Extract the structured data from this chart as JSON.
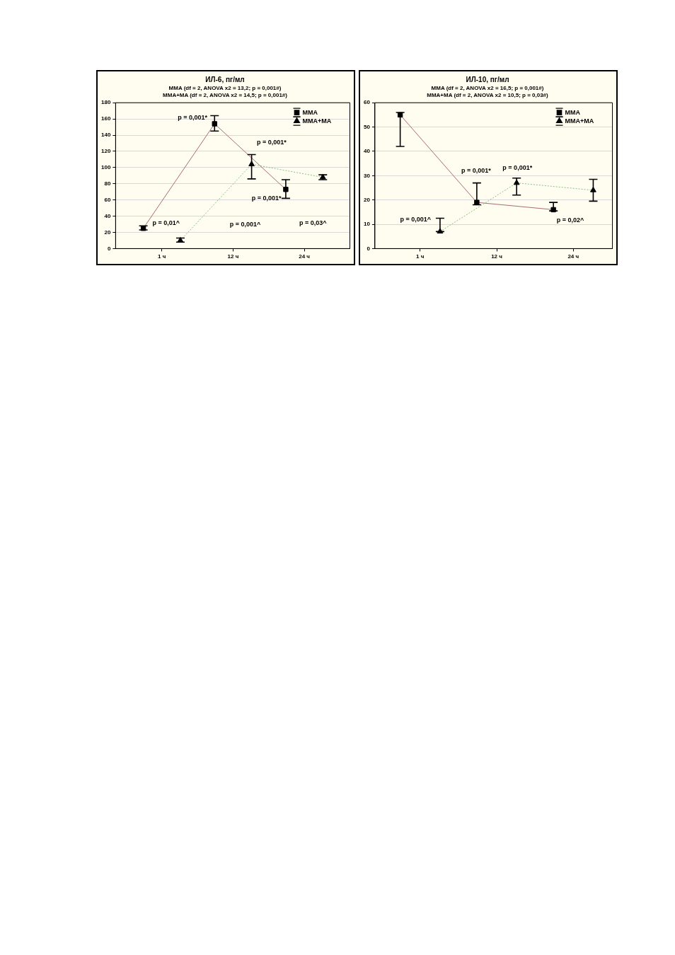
{
  "chart_data": [
    {
      "type": "line",
      "title": "ИЛ-6, пг/мл",
      "subtitle": "MMA (df = 2, ANOVA x2 = 13,2; p = 0,001#)\nMMA+MA (df = 2, ANOVA x2 = 14,5; p = 0,001#)",
      "categories": [
        "1 ч",
        "12 ч",
        "24 ч"
      ],
      "series": [
        {
          "name": "MMA",
          "color": "#a86a78",
          "values": [
            25,
            154,
            73
          ],
          "errors": [
            [
              23,
              28
            ],
            [
              145,
              164
            ],
            [
              62,
              85
            ]
          ],
          "marker": "square",
          "line_style": "solid"
        },
        {
          "name": "MMA+MA",
          "color": "#88c088",
          "values": [
            10,
            104,
            88
          ],
          "errors": [
            [
              8,
              13
            ],
            [
              86,
              116
            ],
            [
              85,
              91
            ]
          ],
          "marker": "triangle",
          "line_style": "dotted"
        }
      ],
      "ylim": [
        0,
        180
      ],
      "yticks": [
        0,
        20,
        40,
        60,
        80,
        100,
        120,
        140,
        160,
        180
      ],
      "grid": "y",
      "legend": "top right",
      "annotations": [
        "p = 0,001*",
        "p = 0,001*",
        "p = 0,001*",
        "p = 0,01^",
        "p = 0,001^",
        "p = 0,03^"
      ]
    },
    {
      "type": "line",
      "title": "ИЛ-10, пг/мл",
      "subtitle": "MMA (df = 2, ANOVA x2 = 16,5; p = 0,001#)\nMMA+MA (df = 2, ANOVA x2 = 10,5; p = 0,03#)",
      "categories": [
        "1 ч",
        "12 ч",
        "24 ч"
      ],
      "series": [
        {
          "name": "MMA",
          "color": "#a86a78",
          "values": [
            55,
            19,
            16
          ],
          "errors": [
            [
              42,
              56
            ],
            [
              18,
              27
            ],
            [
              15.5,
              19
            ]
          ],
          "marker": "square",
          "line_style": "solid"
        },
        {
          "name": "MMA+MA",
          "color": "#88c088",
          "values": [
            7,
            27,
            24
          ],
          "errors": [
            [
              7,
              12.5
            ],
            [
              22,
              29
            ],
            [
              19.5,
              28.5
            ]
          ],
          "marker": "triangle",
          "line_style": "dotted"
        }
      ],
      "ylim": [
        0,
        60
      ],
      "yticks": [
        0,
        10,
        20,
        30,
        40,
        50,
        60
      ],
      "grid": "y",
      "legend": "top right",
      "annotations": [
        "p = 0,001*",
        "p = 0,001*",
        "p = 0,001^",
        "p = 0,02^"
      ]
    }
  ]
}
